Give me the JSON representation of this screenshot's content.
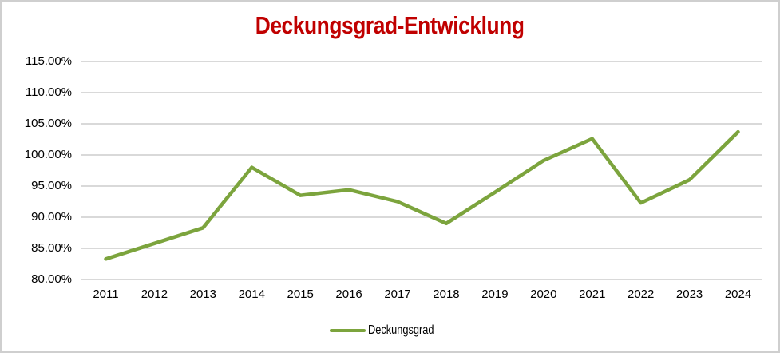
{
  "window": {
    "background": "#ffffff",
    "border_color": "#cfcfcf"
  },
  "chart_data": {
    "type": "line",
    "title": "Deckungsgrad-Entwicklung",
    "title_color": "#c00000",
    "categories": [
      "2011",
      "2012",
      "2013",
      "2014",
      "2015",
      "2016",
      "2017",
      "2018",
      "2019",
      "2020",
      "2021",
      "2022",
      "2023",
      "2024"
    ],
    "series": [
      {
        "name": "Deckungsgrad",
        "color": "#7ca43d",
        "values": [
          83.3,
          85.8,
          88.3,
          98.0,
          93.5,
          94.4,
          92.5,
          89.0,
          94.0,
          99.1,
          102.6,
          92.3,
          96.0,
          103.7
        ]
      }
    ],
    "ylim": [
      80,
      115
    ],
    "ytick_step": 5,
    "ytick_labels": [
      "115.00%",
      "110.00%",
      "105.00%",
      "100.00%",
      "95.00%",
      "90.00%",
      "85.00%",
      "80.00%"
    ],
    "grid": true,
    "gridline_color": "#d9d9d9",
    "axis_label_color": "#000000",
    "legend_position": "bottom",
    "legend_label": "Deckungsgrad"
  }
}
